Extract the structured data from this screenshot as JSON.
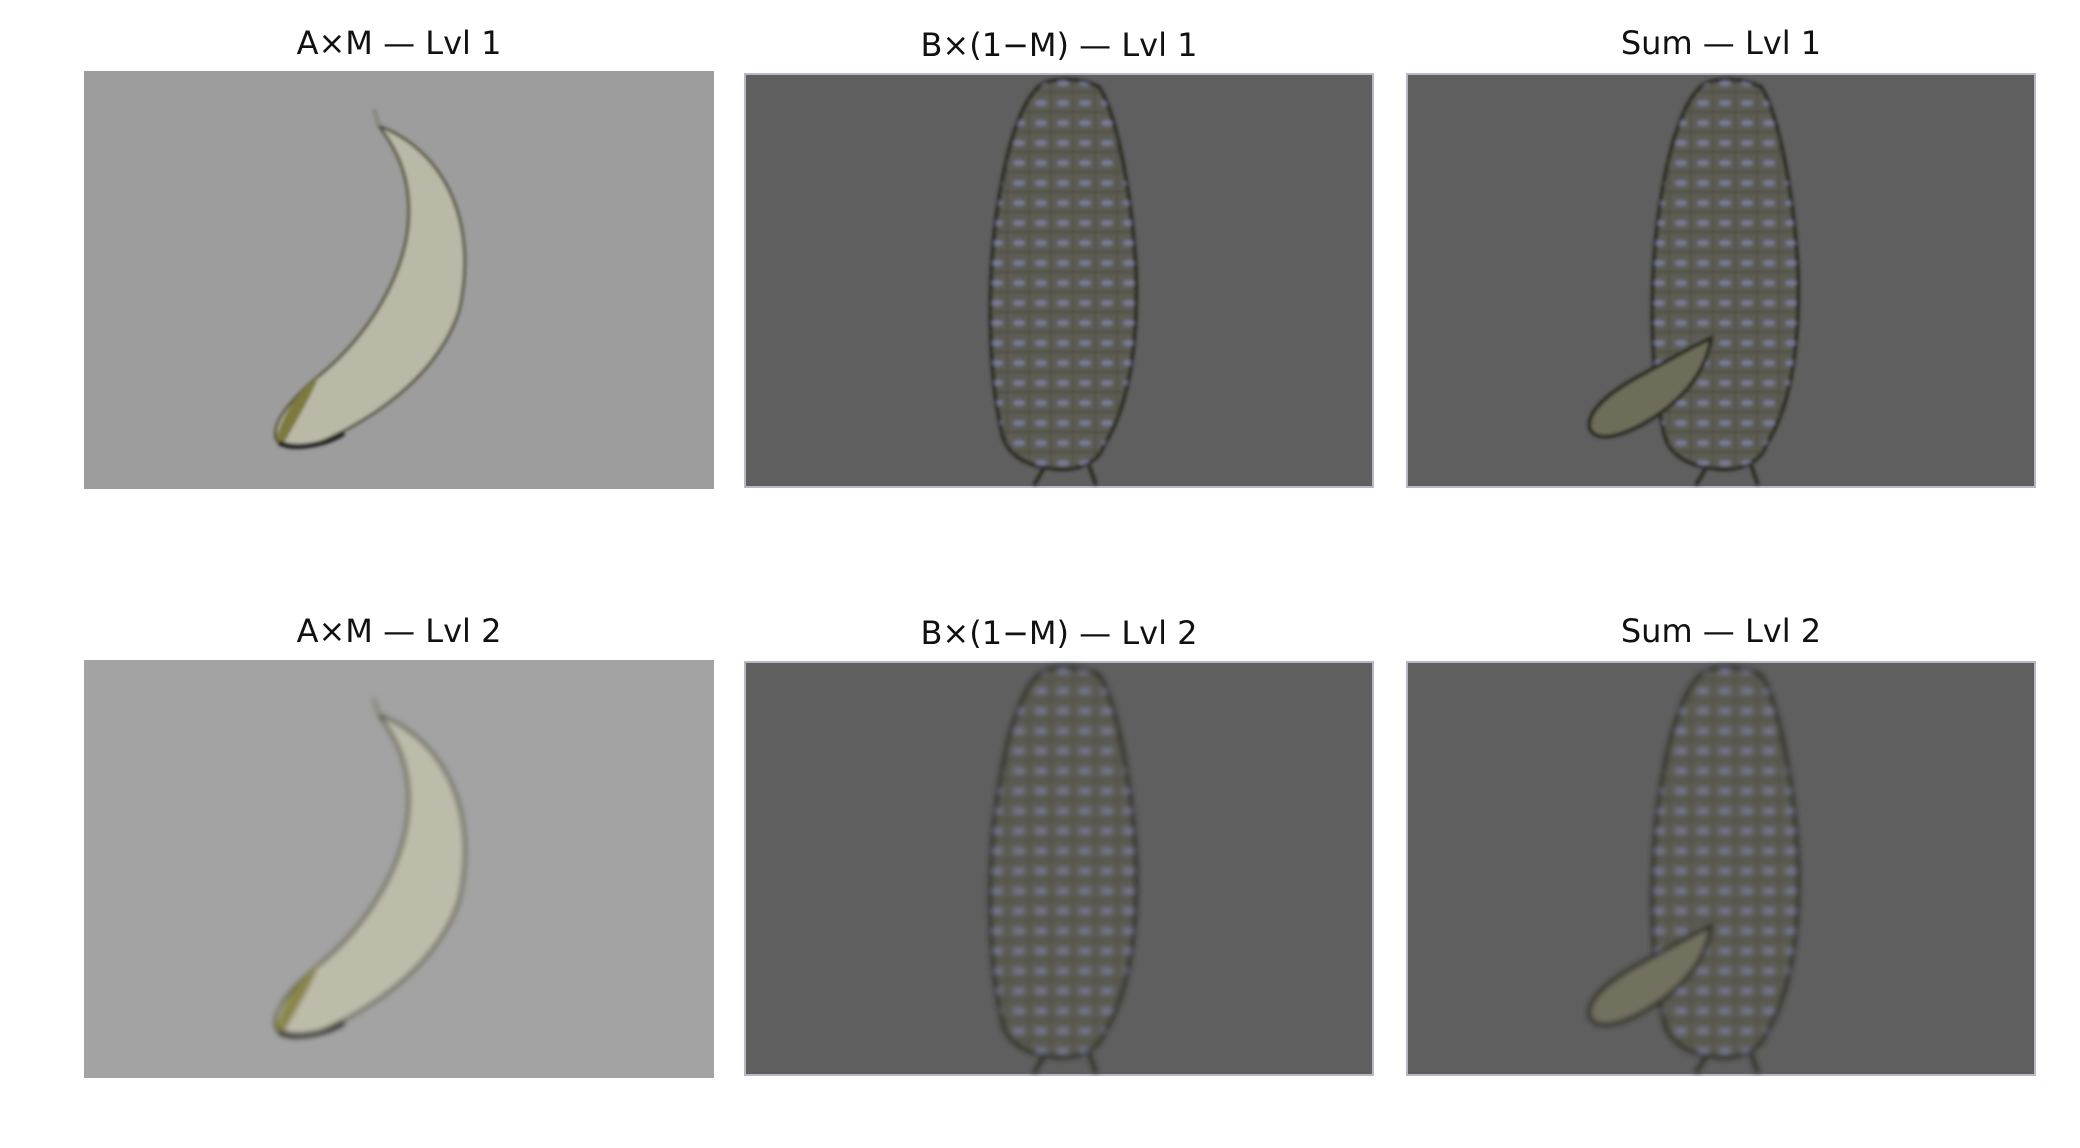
{
  "figure": {
    "panels": [
      {
        "title": "A×M — Lvl 1",
        "content": "banana",
        "background": "#9d9d9d"
      },
      {
        "title": "B×(1−M) — Lvl 1",
        "content": "corn",
        "background": "#5f5f5f"
      },
      {
        "title": "Sum — Lvl 1",
        "content": "banana-over-corn",
        "background": "#5f5f5f"
      },
      {
        "title": "A×M — Lvl 2",
        "content": "banana",
        "background": "#a3a3a3"
      },
      {
        "title": "B×(1−M) — Lvl 2",
        "content": "corn",
        "background": "#5f5f5f"
      },
      {
        "title": "Sum — Lvl 2",
        "content": "banana-over-corn",
        "background": "#5f5f5f"
      }
    ]
  }
}
